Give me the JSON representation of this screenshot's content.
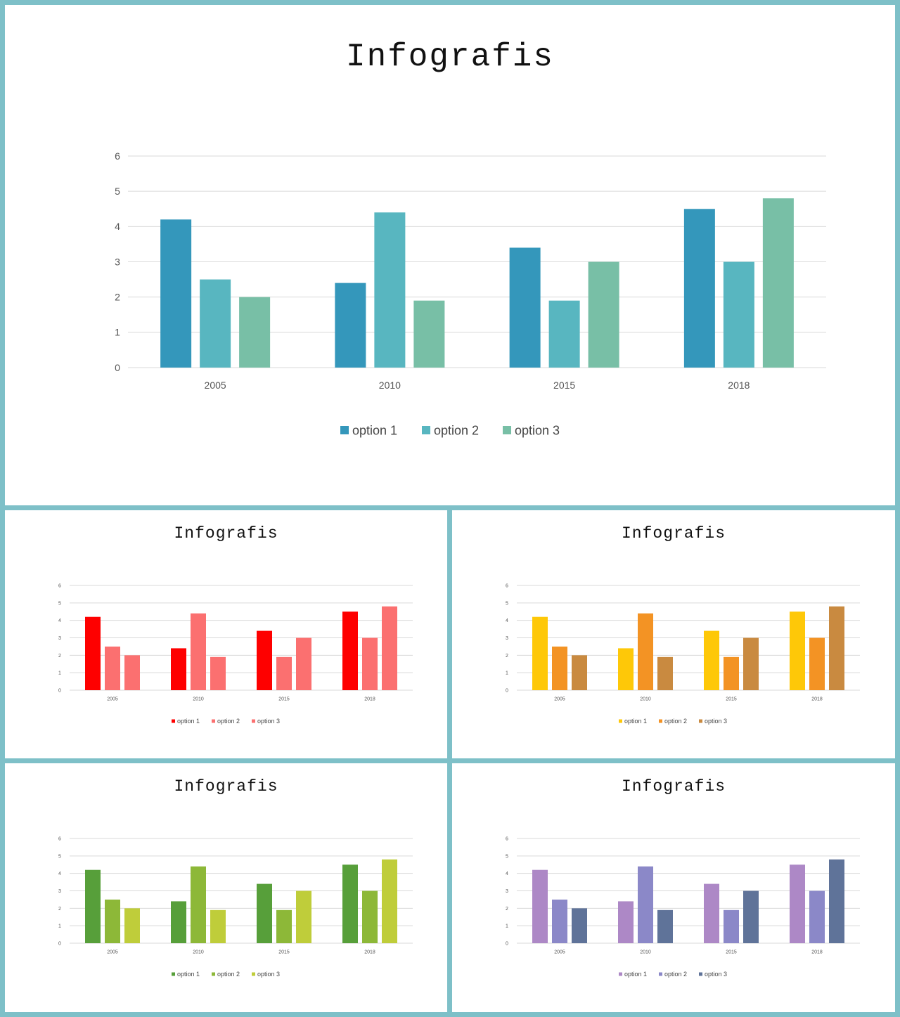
{
  "slides": [
    {
      "id": "main",
      "title": "Infografis",
      "colors": [
        "#3497bb",
        "#58b6c0",
        "#78bfa6"
      ],
      "legend_font": 18,
      "tick_font": 14
    },
    {
      "id": "red",
      "title": "Infografis",
      "colors": [
        "#fe0000",
        "#fb7070",
        "#fb7070"
      ],
      "legend_font": 9,
      "tick_font": 7
    },
    {
      "id": "orange",
      "title": "Infografis",
      "colors": [
        "#fec808",
        "#f39324",
        "#c98a40"
      ],
      "legend_font": 9,
      "tick_font": 7
    },
    {
      "id": "green",
      "title": "Infografis",
      "colors": [
        "#579f3a",
        "#8db838",
        "#bfcd3a"
      ],
      "legend_font": 9,
      "tick_font": 7
    },
    {
      "id": "purple",
      "title": "Infografis",
      "colors": [
        "#ad88c6",
        "#8b88c8",
        "#5f7399"
      ],
      "legend_font": 9,
      "tick_font": 7
    }
  ],
  "chart_data": [
    {
      "type": "bar",
      "categories": [
        "2005",
        "2010",
        "2015",
        "2018"
      ],
      "series": [
        {
          "name": "option 1",
          "values": [
            4.2,
            2.4,
            3.4,
            4.5
          ]
        },
        {
          "name": "option 2",
          "values": [
            2.5,
            4.4,
            1.9,
            3.0
          ]
        },
        {
          "name": "option 3",
          "values": [
            2.0,
            1.9,
            3.0,
            4.8
          ]
        }
      ],
      "y_ticks": [
        "0",
        "1",
        "2",
        "3",
        "4",
        "5",
        "6"
      ],
      "ylim": [
        0,
        6
      ],
      "grid": true,
      "legend": "bottom"
    },
    {
      "type": "bar",
      "categories": [
        "2005",
        "2010",
        "2015",
        "2018"
      ],
      "series": [
        {
          "name": "option 1",
          "values": [
            4.2,
            2.4,
            3.4,
            4.5
          ]
        },
        {
          "name": "option 2",
          "values": [
            2.5,
            4.4,
            1.9,
            3.0
          ]
        },
        {
          "name": "option 3",
          "values": [
            2.0,
            1.9,
            3.0,
            4.8
          ]
        }
      ],
      "y_ticks": [
        "0",
        "1",
        "2",
        "3",
        "4",
        "5",
        "6"
      ],
      "ylim": [
        0,
        6
      ],
      "grid": true,
      "legend": "bottom"
    },
    {
      "type": "bar",
      "categories": [
        "2005",
        "2010",
        "2015",
        "2018"
      ],
      "series": [
        {
          "name": "option 1",
          "values": [
            4.2,
            2.4,
            3.4,
            4.5
          ]
        },
        {
          "name": "option 2",
          "values": [
            2.5,
            4.4,
            1.9,
            3.0
          ]
        },
        {
          "name": "option 3",
          "values": [
            2.0,
            1.9,
            3.0,
            4.8
          ]
        }
      ],
      "y_ticks": [
        "0",
        "1",
        "2",
        "3",
        "4",
        "5",
        "6"
      ],
      "ylim": [
        0,
        6
      ],
      "grid": true,
      "legend": "bottom"
    },
    {
      "type": "bar",
      "categories": [
        "2005",
        "2010",
        "2015",
        "2018"
      ],
      "series": [
        {
          "name": "option 1",
          "values": [
            4.2,
            2.4,
            3.4,
            4.5
          ]
        },
        {
          "name": "option 2",
          "values": [
            2.5,
            4.4,
            1.9,
            3.0
          ]
        },
        {
          "name": "option 3",
          "values": [
            2.0,
            1.9,
            3.0,
            4.8
          ]
        }
      ],
      "y_ticks": [
        "0",
        "1",
        "2",
        "3",
        "4",
        "5",
        "6"
      ],
      "ylim": [
        0,
        6
      ],
      "grid": true,
      "legend": "bottom"
    },
    {
      "type": "bar",
      "categories": [
        "2005",
        "2010",
        "2015",
        "2018"
      ],
      "series": [
        {
          "name": "option 1",
          "values": [
            4.2,
            2.4,
            3.4,
            4.5
          ]
        },
        {
          "name": "option 2",
          "values": [
            2.5,
            4.4,
            1.9,
            3.0
          ]
        },
        {
          "name": "option 3",
          "values": [
            2.0,
            1.9,
            3.0,
            4.8
          ]
        }
      ],
      "y_ticks": [
        "0",
        "1",
        "2",
        "3",
        "4",
        "5",
        "6"
      ],
      "ylim": [
        0,
        6
      ],
      "grid": true,
      "legend": "bottom"
    }
  ]
}
